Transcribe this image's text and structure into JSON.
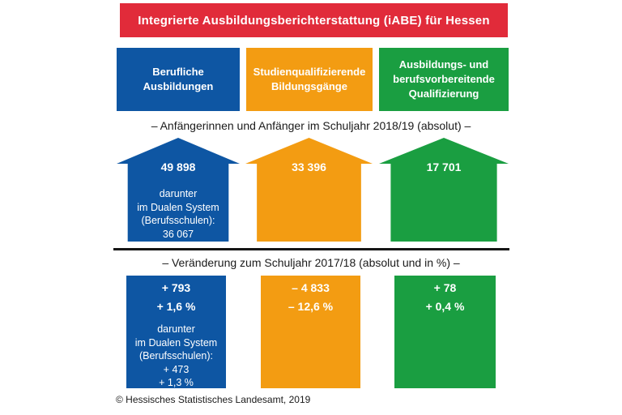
{
  "title": "Integrierte Ausbildungsberichterstattung (iABE) für Hessen",
  "colors": {
    "banner_red": "#E12B3A",
    "blue": "#0E56A3",
    "orange": "#F39C12",
    "green": "#1A9E41",
    "text_dark": "#1A1A1A"
  },
  "section_beginners": {
    "heading": "– Anfängerinnen und Anfänger im Schuljahr 2018/19 (absolut) –"
  },
  "section_change": {
    "heading": "– Veränderung zum Schuljahr 2017/18 (absolut und in %) –"
  },
  "columns": [
    {
      "key": "berufliche-ausbildungen",
      "color": "#0E56A3",
      "header": "Berufliche Ausbildungen",
      "beginners_value": "49 898",
      "beginners_note": {
        "l1": "darunter",
        "l2": "im Dualen System",
        "l3": "(Berufsschulen):",
        "l4": "36 067"
      },
      "change_value_abs": "+ 793",
      "change_value_pct": "+ 1,6 %",
      "change_note": {
        "l1": "darunter",
        "l2": "im Dualen System",
        "l3": "(Berufsschulen):",
        "l4": "+ 473",
        "l5": "+ 1,3 %"
      }
    },
    {
      "key": "studienqualifizierende-bildungsgaenge",
      "color": "#F39C12",
      "header": "Studienqualifizierende Bildungsgänge",
      "beginners_value": "33 396",
      "change_value_abs": "– 4 833",
      "change_value_pct": "– 12,6 %"
    },
    {
      "key": "ausbildungs-und-berufsvorbereitende-qualifizierung",
      "color": "#1A9E41",
      "header": "Ausbildungs- und berufsvorbereitende Qualifizierung",
      "beginners_value": "17 701",
      "change_value_abs": "+ 78",
      "change_value_pct": "+ 0,4 %"
    }
  ],
  "footer": "© Hessisches Statistisches Landesamt, 2019",
  "chart_data": {
    "type": "bar",
    "title": "Integrierte Ausbildungsberichterstattung (iABE) für Hessen",
    "categories": [
      "Berufliche Ausbildungen",
      "Studienqualifizierende Bildungsgänge",
      "Ausbildungs- und berufsvorbereitende Qualifizierung"
    ],
    "series": [
      {
        "name": "Anfängerinnen und Anfänger im Schuljahr 2018/19 (absolut)",
        "values": [
          49898,
          33396,
          17701
        ]
      },
      {
        "name": "darunter im Dualen System (Berufsschulen), Schuljahr 2018/19 (absolut)",
        "values": [
          36067,
          null,
          null
        ]
      },
      {
        "name": "Veränderung zum Schuljahr 2017/18 (absolut)",
        "values": [
          793,
          -4833,
          78
        ]
      },
      {
        "name": "Veränderung zum Schuljahr 2017/18 (in %)",
        "values": [
          1.6,
          -12.6,
          0.4
        ]
      },
      {
        "name": "darunter im Dualen System (Berufsschulen), Veränderung (absolut)",
        "values": [
          473,
          null,
          null
        ]
      },
      {
        "name": "darunter im Dualen System (Berufsschulen), Veränderung (in %)",
        "values": [
          1.3,
          null,
          null
        ]
      }
    ],
    "colors": [
      "#0E56A3",
      "#F39C12",
      "#1A9E41"
    ],
    "legend_position": "none",
    "grid": false,
    "notes": "Pictorial infographic: one colored up-arrow per category with absolute beginner counts, plus change boxes below a divider"
  }
}
